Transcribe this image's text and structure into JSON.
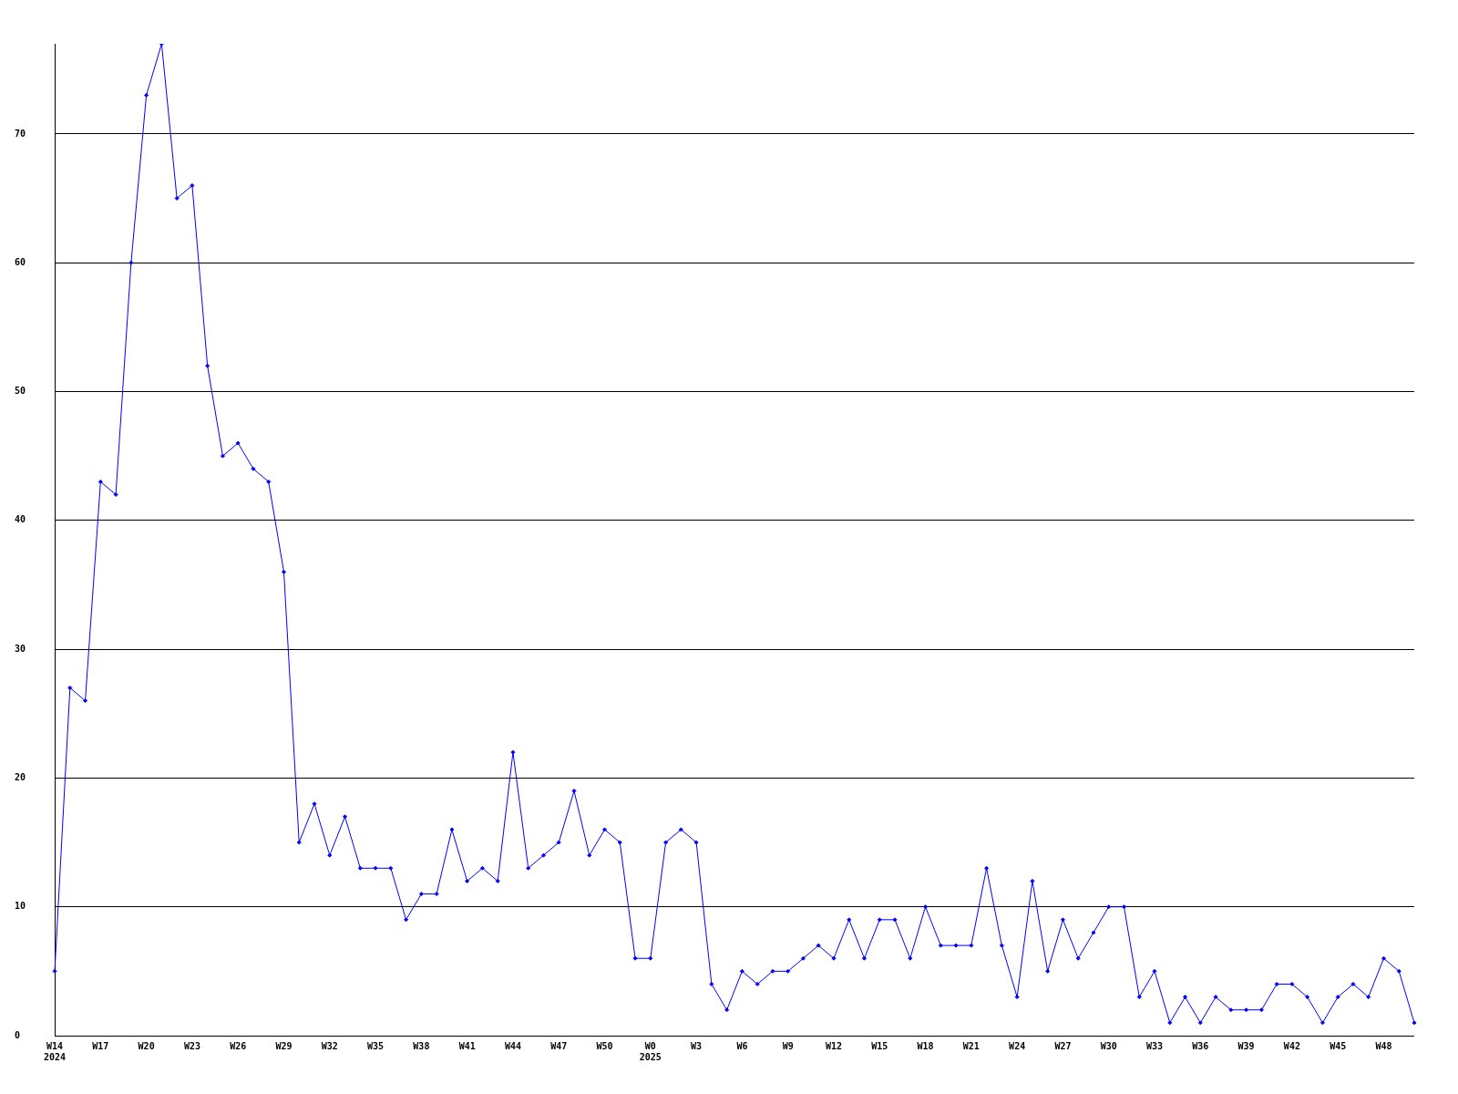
{
  "chart_data": {
    "type": "line",
    "categories": [
      "W14\n2024",
      null,
      null,
      "W17",
      null,
      null,
      "W20",
      null,
      null,
      "W23",
      null,
      null,
      "W26",
      null,
      null,
      "W29",
      null,
      null,
      "W32",
      null,
      null,
      "W35",
      null,
      null,
      "W38",
      null,
      null,
      "W41",
      null,
      null,
      "W44",
      null,
      null,
      "W47",
      null,
      null,
      "W50",
      null,
      null,
      "W0\n2025",
      null,
      null,
      "W3",
      null,
      null,
      "W6",
      null,
      null,
      "W9",
      null,
      null,
      "W12",
      null,
      null,
      "W15",
      null,
      null,
      "W18",
      null,
      null,
      "W21",
      null,
      null,
      "W24",
      null,
      null,
      "W27",
      null,
      null,
      "W30",
      null,
      null,
      "W33",
      null,
      null,
      "W36",
      null,
      null,
      "W39",
      null,
      null,
      "W42",
      null,
      null,
      "W45",
      null,
      null,
      "W48",
      null,
      null
    ],
    "series": [
      {
        "color": "#0000ff",
        "values": [
          5,
          27,
          26,
          43,
          42,
          60,
          73,
          77,
          65,
          66,
          52,
          45,
          46,
          44,
          43,
          36,
          15,
          18,
          14,
          17,
          13,
          13,
          13,
          9,
          11,
          11,
          16,
          12,
          13,
          12,
          22,
          13,
          14,
          15,
          19,
          14,
          16,
          15,
          6,
          6,
          15,
          16,
          15,
          4,
          2,
          5,
          4,
          5,
          5,
          6,
          7,
          6,
          9,
          6,
          9,
          9,
          6,
          10,
          7,
          7,
          7,
          13,
          7,
          3,
          12,
          5,
          9,
          6,
          8,
          10,
          10,
          3,
          5,
          1,
          3,
          1,
          3,
          2,
          2,
          2,
          4,
          4,
          3,
          1,
          3,
          4,
          3,
          6,
          5,
          1
        ]
      }
    ],
    "ylim": [
      0,
      77
    ],
    "yticks": [
      0,
      10,
      20,
      30,
      40,
      50,
      60,
      70
    ],
    "grid": "y",
    "marker": "diamond",
    "line_style": "solid",
    "legend": false
  }
}
